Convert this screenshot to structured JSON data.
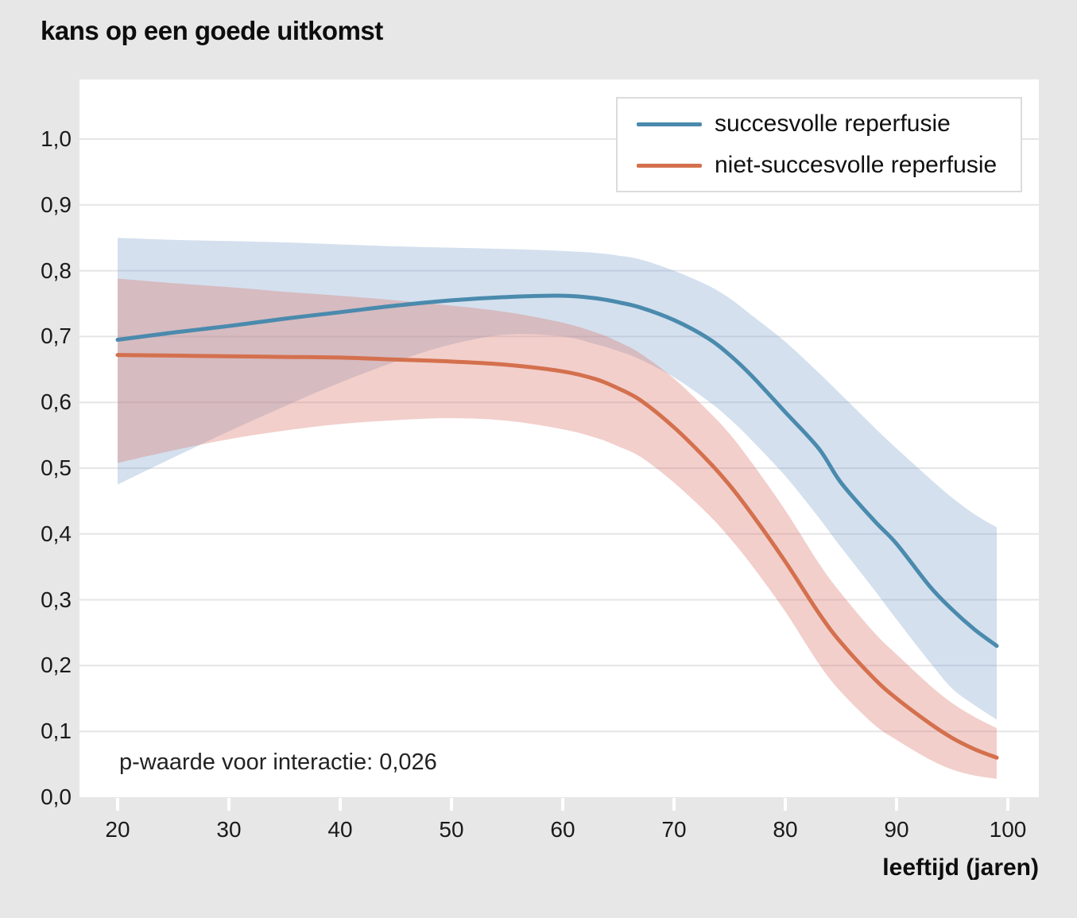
{
  "title": "kans op een goede uitkomst",
  "annotation": {
    "p_value_text": "p-waarde voor interactie: 0,026"
  },
  "x_axis": {
    "label": "leeftijd (jaren)",
    "tick_values": [
      20,
      30,
      40,
      50,
      60,
      70,
      80,
      90,
      100
    ],
    "tick_labels": [
      "20",
      "30",
      "40",
      "50",
      "60",
      "70",
      "80",
      "90",
      "100"
    ]
  },
  "y_axis": {
    "tick_values": [
      0,
      0.1,
      0.2,
      0.3,
      0.4,
      0.5,
      0.6,
      0.7,
      0.8,
      0.9,
      1.0
    ],
    "tick_labels": [
      "0,0",
      "0,1",
      "0,2",
      "0,3",
      "0,4",
      "0,5",
      "0,6",
      "0,7",
      "0,8",
      "0,9",
      "1,0"
    ]
  },
  "legend": {
    "items": [
      {
        "label": "succesvolle reperfusie",
        "color": "#4a8aad"
      },
      {
        "label": "niet-succesvolle reperfusie",
        "color": "#d4704e"
      }
    ]
  },
  "colors": {
    "background": "#e7e7e7",
    "plot_background": "#ffffff",
    "gridline": "#e5e5e8",
    "blue_line": "#4a8aad",
    "orange_line": "#d4704e",
    "blue_band": "rgba(122,158,201,0.32)",
    "pink_band": "rgba(219,122,110,0.36)",
    "tick_mark": "#ffffff"
  },
  "chart_data": {
    "type": "line",
    "title": "kans op een goede uitkomst",
    "xlabel": "leeftijd (jaren)",
    "ylabel": "kans op een goede uitkomst",
    "xlim": [
      16.5,
      103
    ],
    "ylim": [
      0,
      1.09
    ],
    "grid": "horizontal",
    "legend_position": "top-right",
    "annotation": "p-waarde voor interactie: 0,026",
    "x": [
      20,
      25,
      30,
      35,
      40,
      45,
      50,
      55,
      60,
      63,
      65,
      67,
      70,
      73,
      75,
      77,
      80,
      83,
      85,
      88,
      90,
      93,
      95,
      97,
      99
    ],
    "series": [
      {
        "name": "succesvolle reperfusie",
        "color": "#4a8aad",
        "band_color": "rgba(122,158,201,0.32)",
        "values": [
          0.695,
          0.706,
          0.716,
          0.727,
          0.737,
          0.747,
          0.755,
          0.76,
          0.762,
          0.758,
          0.752,
          0.744,
          0.725,
          0.698,
          0.672,
          0.64,
          0.585,
          0.53,
          0.478,
          0.42,
          0.385,
          0.32,
          0.285,
          0.255,
          0.23
        ],
        "ci_high": [
          0.85,
          0.847,
          0.845,
          0.843,
          0.84,
          0.837,
          0.835,
          0.833,
          0.83,
          0.827,
          0.823,
          0.817,
          0.8,
          0.778,
          0.758,
          0.732,
          0.692,
          0.645,
          0.612,
          0.562,
          0.53,
          0.484,
          0.455,
          0.43,
          0.41
        ],
        "ci_low": [
          0.475,
          0.516,
          0.556,
          0.594,
          0.63,
          0.662,
          0.688,
          0.703,
          0.7,
          0.688,
          0.678,
          0.665,
          0.638,
          0.603,
          0.575,
          0.542,
          0.488,
          0.425,
          0.38,
          0.315,
          0.27,
          0.205,
          0.165,
          0.14,
          0.118
        ]
      },
      {
        "name": "niet-succesvolle reperfusie",
        "color": "#d4704e",
        "band_color": "rgba(219,122,110,0.36)",
        "values": [
          0.672,
          0.671,
          0.67,
          0.669,
          0.668,
          0.665,
          0.662,
          0.657,
          0.647,
          0.635,
          0.621,
          0.603,
          0.562,
          0.512,
          0.474,
          0.43,
          0.358,
          0.28,
          0.235,
          0.18,
          0.15,
          0.112,
          0.09,
          0.073,
          0.06
        ],
        "ci_high": [
          0.788,
          0.781,
          0.775,
          0.768,
          0.762,
          0.755,
          0.747,
          0.737,
          0.721,
          0.706,
          0.692,
          0.674,
          0.636,
          0.588,
          0.552,
          0.508,
          0.436,
          0.356,
          0.31,
          0.25,
          0.217,
          0.17,
          0.143,
          0.122,
          0.105
        ],
        "ci_low": [
          0.508,
          0.527,
          0.544,
          0.557,
          0.567,
          0.573,
          0.576,
          0.572,
          0.559,
          0.546,
          0.533,
          0.517,
          0.478,
          0.431,
          0.394,
          0.352,
          0.282,
          0.203,
          0.16,
          0.11,
          0.087,
          0.057,
          0.042,
          0.033,
          0.028
        ]
      }
    ]
  }
}
